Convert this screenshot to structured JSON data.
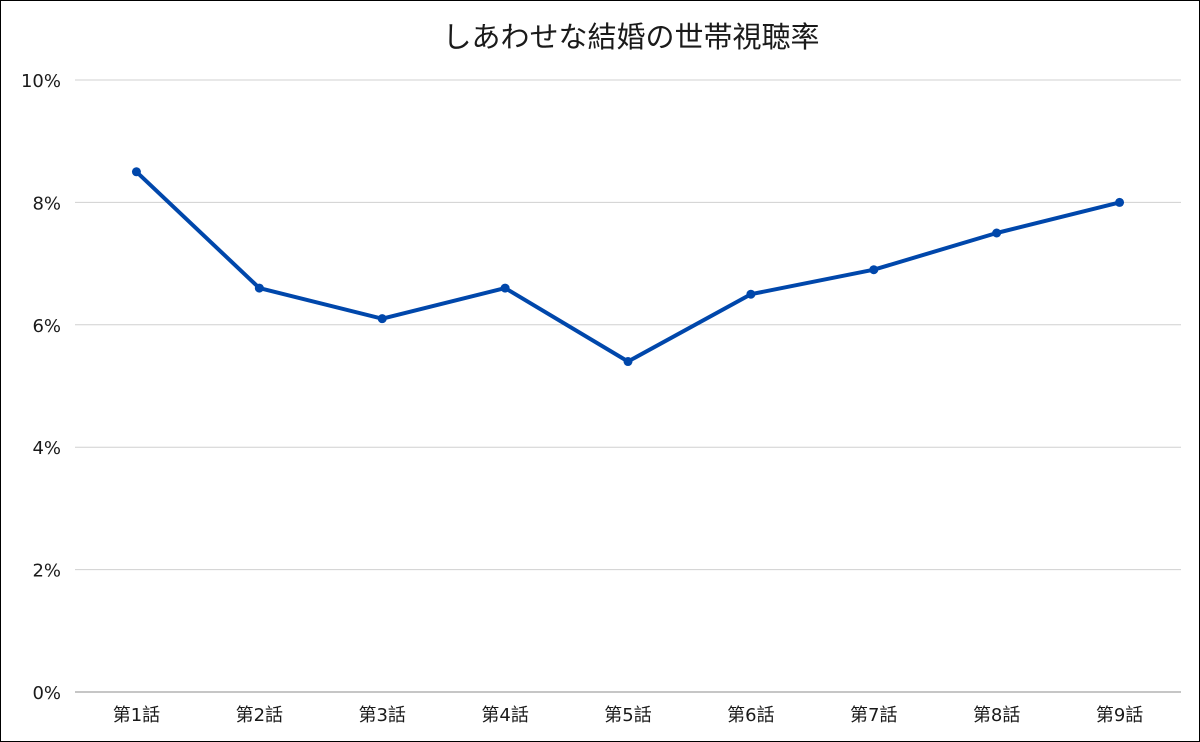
{
  "chart_data": {
    "type": "line",
    "title": "しあわせな結婚の世帯視聴率",
    "xlabel": "",
    "ylabel": "",
    "categories": [
      "第1話",
      "第2話",
      "第3話",
      "第4話",
      "第5話",
      "第6話",
      "第7話",
      "第8話",
      "第9話"
    ],
    "series": [
      {
        "values": [
          8.5,
          6.6,
          6.1,
          6.6,
          5.4,
          6.5,
          6.9,
          7.5,
          8.0
        ],
        "color": "#0047AB"
      }
    ],
    "ylim": [
      0,
      10
    ],
    "yticks": [
      0,
      2,
      4,
      6,
      8,
      10
    ],
    "ytick_labels": [
      "0%",
      "2%",
      "4%",
      "6%",
      "8%",
      "10%"
    ],
    "grid": true,
    "legend": "none"
  }
}
